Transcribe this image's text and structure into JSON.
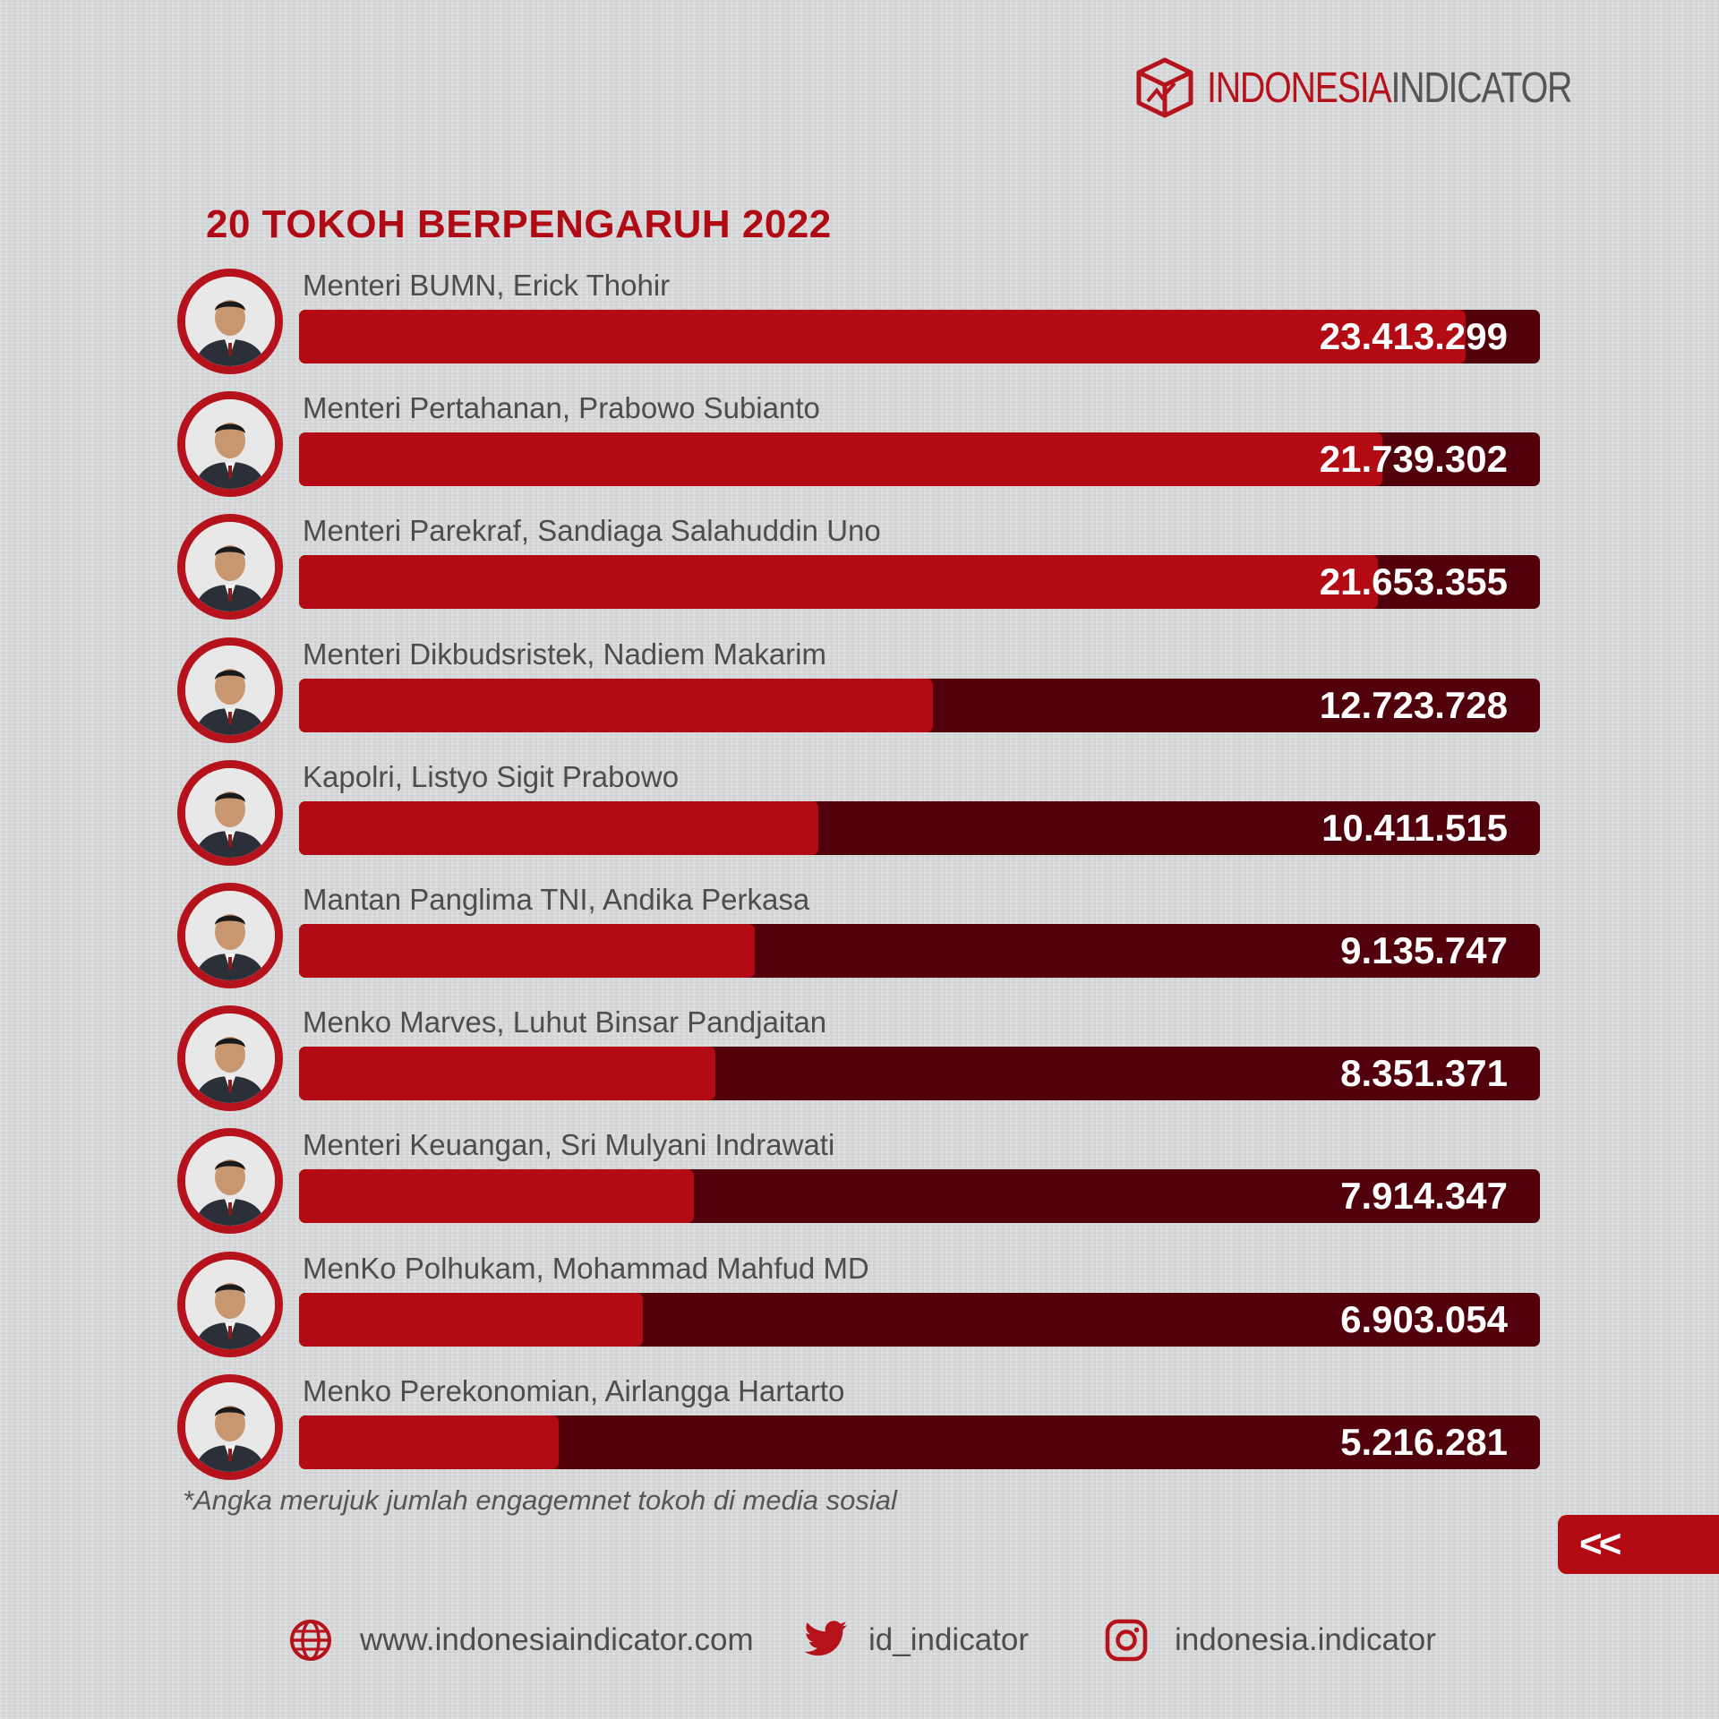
{
  "brand": {
    "name_part1": "INDONESIA",
    "name_part2": "INDICATOR",
    "accent": "#b5121b",
    "dark_bar": "#52000b"
  },
  "title": "20 TOKOH BERPENGARUH 2022",
  "chart_data": {
    "type": "bar",
    "orientation": "horizontal",
    "title": "20 TOKOH BERPENGARUH 2022",
    "xlim": [
      0,
      24900000
    ],
    "categories": [
      "Menteri BUMN, Erick Thohir",
      "Menteri Pertahanan, Prabowo Subianto",
      "Menteri Parekraf, Sandiaga Salahuddin Uno",
      "Menteri Dikbudsristek, Nadiem Makarim",
      "Kapolri, Listyo Sigit Prabowo",
      "Mantan Panglima TNI, Andika Perkasa",
      "Menko Marves, Luhut Binsar Pandjaitan",
      "Menteri Keuangan, Sri Mulyani Indrawati",
      "MenKo Polhukam, Mohammad Mahfud MD",
      "Menko Perekonomian, Airlangga Hartarto"
    ],
    "values": [
      23413299,
      21739302,
      21653355,
      12723728,
      10411515,
      9135747,
      8351371,
      7914347,
      6903054,
      5216281
    ],
    "value_labels": [
      "23.413.299",
      "21.739.302",
      "21.653.355",
      "12.723.728",
      "10.411.515",
      "9.135.747",
      "8.351.371",
      "7.914.347",
      "6.903.054",
      "5.216.281"
    ],
    "avatar_icons": [
      "person-photo-icon",
      "person-photo-icon",
      "person-photo-icon",
      "person-photo-icon",
      "person-photo-icon",
      "person-photo-icon",
      "person-photo-icon",
      "person-photo-icon",
      "person-photo-icon",
      "person-photo-icon"
    ],
    "legend": "none",
    "grid": false
  },
  "footnote": "*Angka merujuk jumlah engagemnet tokoh di media sosial",
  "back_button": {
    "label": "<<"
  },
  "footer": {
    "website": "www.indonesiaindicator.com",
    "twitter": "id_indicator",
    "instagram": "indonesia.indicator",
    "icons": [
      "globe-icon",
      "twitter-bird-icon",
      "instagram-icon"
    ]
  }
}
